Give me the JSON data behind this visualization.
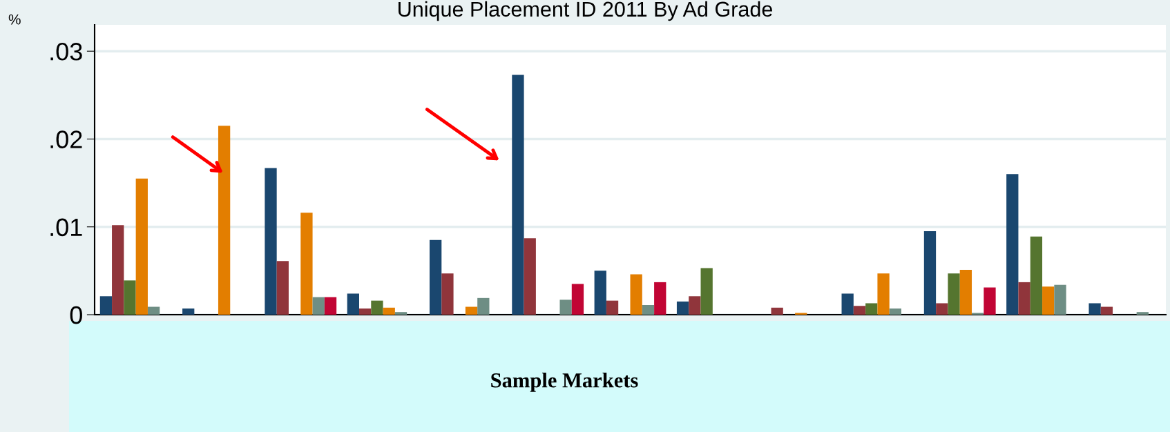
{
  "chart_data": {
    "type": "bar",
    "title": "Unique Placement ID 2011 By Ad Grade",
    "xlabel": "Sample Markets",
    "ylabel": "%",
    "categories": [
      null,
      null,
      null,
      null,
      null,
      null,
      null,
      null,
      null,
      null,
      null,
      null,
      null
    ],
    "series": [
      {
        "color": "#1a476f",
        "values": [
          0.0021,
          0.0007,
          0.0167,
          0.0024,
          0.0085,
          0.0273,
          0.005,
          0.0015,
          0,
          0.0024,
          0.0095,
          0.016,
          0.0013
        ]
      },
      {
        "color": "#90353b",
        "values": [
          0.0102,
          0,
          0.0061,
          0.0007,
          0.0047,
          0.0087,
          0.0016,
          0.0021,
          0.0008,
          0.001,
          0.0013,
          0.0037,
          0.0009
        ]
      },
      {
        "color": "#55752f",
        "values": [
          0.0039,
          0,
          0,
          0.0016,
          0,
          0,
          0,
          0.0053,
          0,
          0.0013,
          0.0047,
          0.0089,
          0
        ]
      },
      {
        "color": "#e37e00",
        "values": [
          0.0155,
          0.0215,
          0.0116,
          0.0008,
          0.0009,
          0,
          0.0046,
          0,
          0.0002,
          0.0047,
          0.0051,
          0.0032,
          0
        ]
      },
      {
        "color": "#6e8e84",
        "values": [
          0.0009,
          0,
          0.002,
          0.0003,
          0.0019,
          0.0017,
          0.0011,
          0,
          0,
          0.0007,
          0.0002,
          0.0034,
          0.0003
        ]
      },
      {
        "color": "#c10534",
        "values": [
          0,
          0,
          0.002,
          0,
          0,
          0.0035,
          0.0037,
          0,
          0,
          0,
          0.0031,
          0,
          0
        ]
      }
    ],
    "ylim": [
      0,
      0.033
    ],
    "yticks": [
      {
        "value": 0,
        "label": "0"
      },
      {
        "value": 0.01,
        "label": ".01"
      },
      {
        "value": 0.02,
        "label": ".02"
      },
      {
        "value": 0.03,
        "label": ".03"
      }
    ],
    "grid": "y"
  }
}
